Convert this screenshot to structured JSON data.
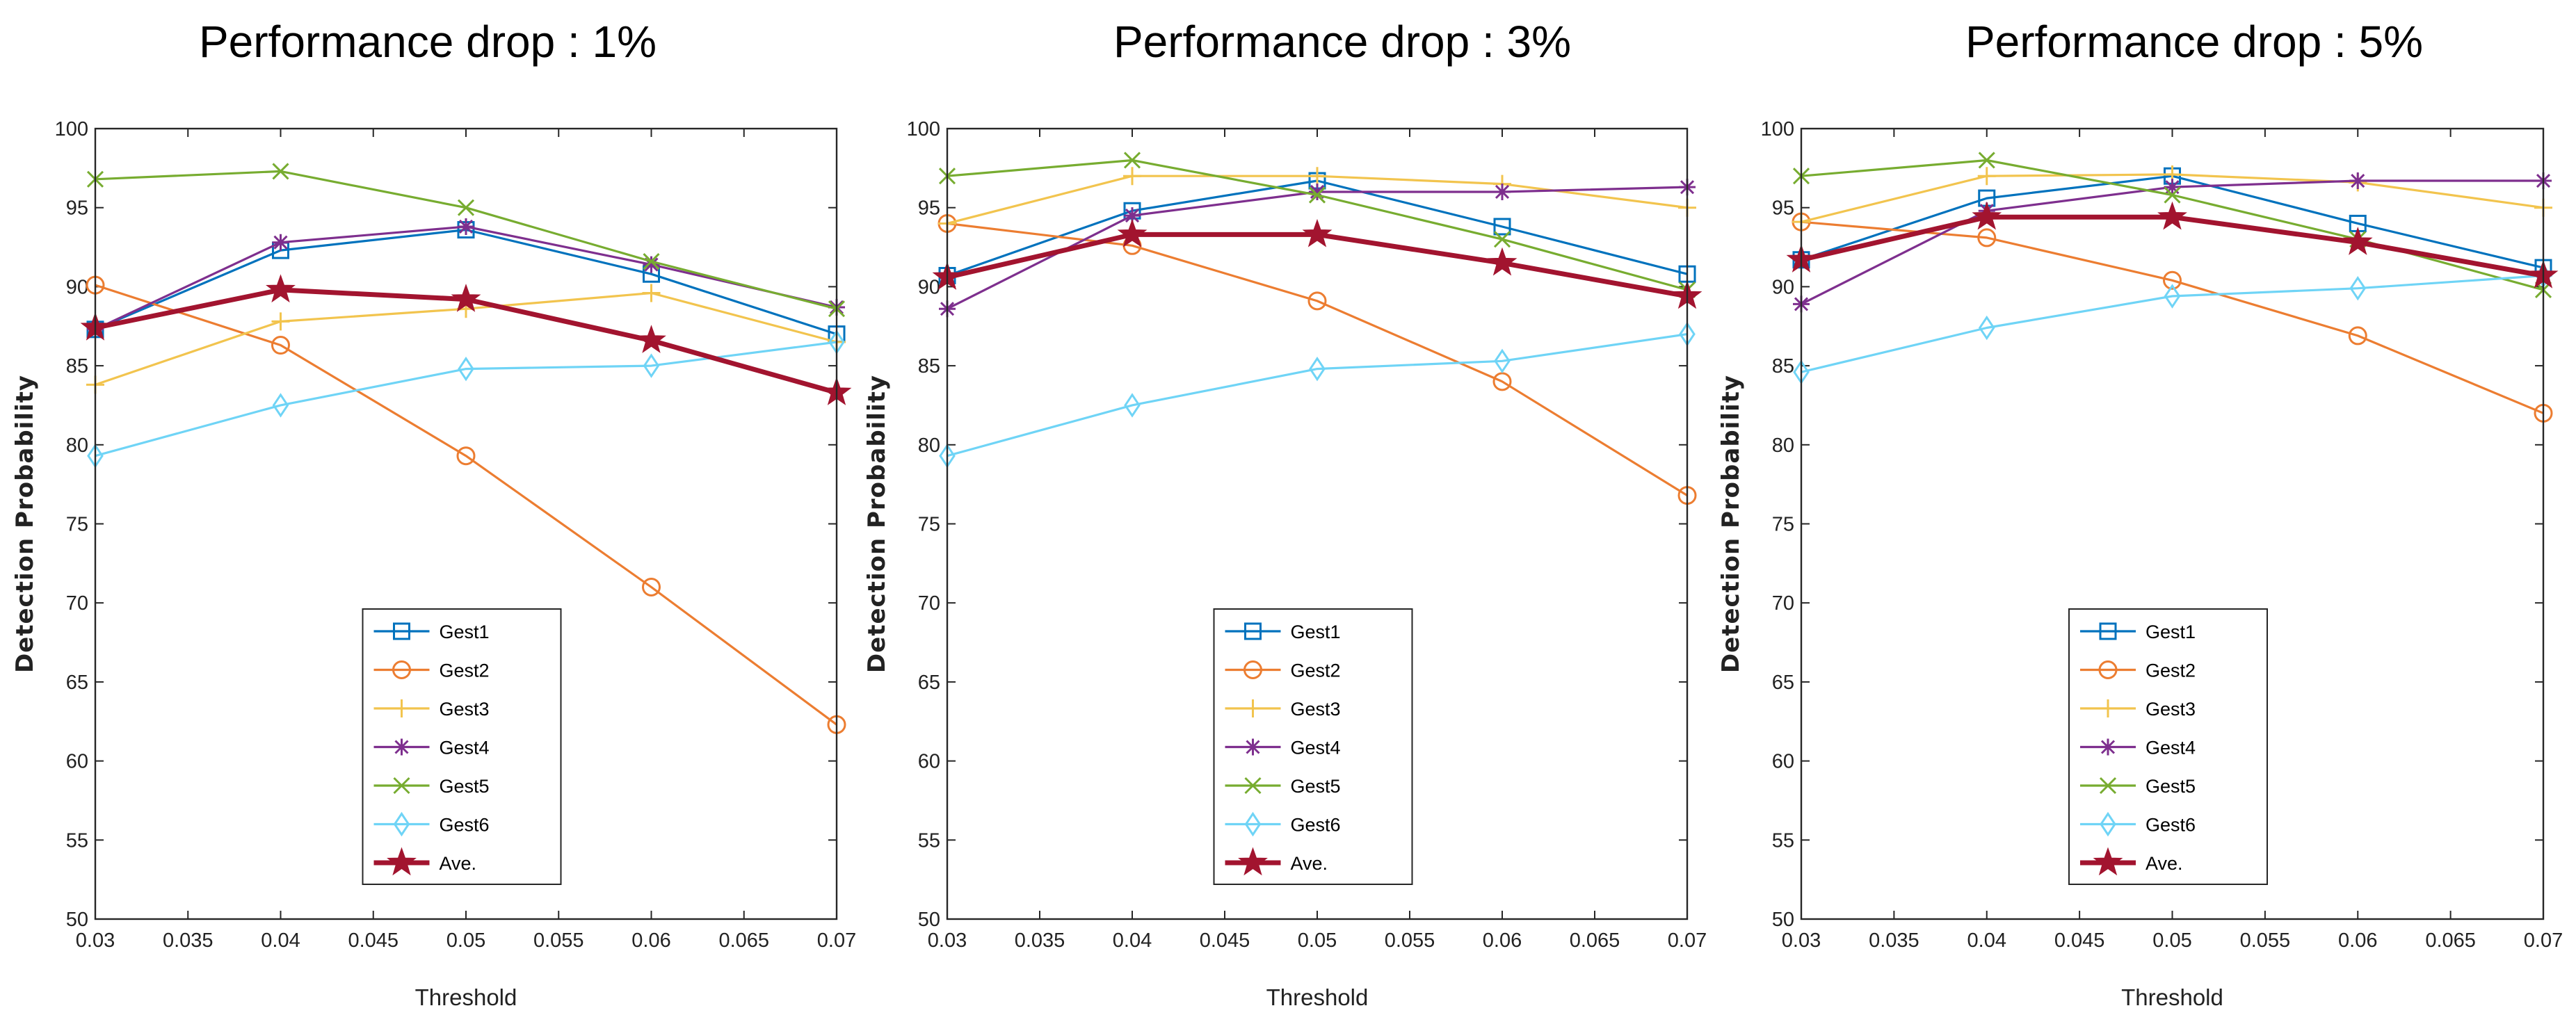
{
  "chart_data": [
    {
      "type": "line",
      "title": "Performance drop : 1%",
      "xlabel": "Threshold",
      "ylabel": "Detection Probability",
      "xlim": [
        0.03,
        0.07
      ],
      "ylim": [
        50,
        100
      ],
      "x": [
        0.03,
        0.04,
        0.05,
        0.06,
        0.07
      ],
      "xtick_labels": [
        "0.03",
        "0.035",
        "0.04",
        "0.045",
        "0.05",
        "0.055",
        "0.06",
        "0.065",
        "0.07"
      ],
      "ytick_labels": [
        "50",
        "55",
        "60",
        "65",
        "70",
        "75",
        "80",
        "85",
        "90",
        "95",
        "100"
      ],
      "legend_position": "bottom-center",
      "series": [
        {
          "name": "Gest1",
          "values": [
            87.3,
            92.3,
            93.6,
            90.8,
            87.0
          ]
        },
        {
          "name": "Gest2",
          "values": [
            90.1,
            86.3,
            79.3,
            71.0,
            62.3
          ]
        },
        {
          "name": "Gest3",
          "values": [
            83.8,
            87.8,
            88.6,
            89.6,
            86.5
          ]
        },
        {
          "name": "Gest4",
          "values": [
            87.3,
            92.8,
            93.8,
            91.4,
            88.7
          ]
        },
        {
          "name": "Gest5",
          "values": [
            96.8,
            97.3,
            95.0,
            91.6,
            88.6
          ]
        },
        {
          "name": "Gest6",
          "values": [
            79.3,
            82.5,
            84.8,
            85.0,
            86.5
          ]
        },
        {
          "name": "Ave.",
          "values": [
            87.4,
            89.8,
            89.2,
            86.6,
            83.3
          ]
        }
      ]
    },
    {
      "type": "line",
      "title": "Performance drop : 3%",
      "xlabel": "Threshold",
      "ylabel": "Detection Probability",
      "xlim": [
        0.03,
        0.07
      ],
      "ylim": [
        50,
        100
      ],
      "x": [
        0.03,
        0.04,
        0.05,
        0.06,
        0.07
      ],
      "xtick_labels": [
        "0.03",
        "0.035",
        "0.04",
        "0.045",
        "0.05",
        "0.055",
        "0.06",
        "0.065",
        "0.07"
      ],
      "ytick_labels": [
        "50",
        "55",
        "60",
        "65",
        "70",
        "75",
        "80",
        "85",
        "90",
        "95",
        "100"
      ],
      "legend_position": "bottom-center",
      "series": [
        {
          "name": "Gest1",
          "values": [
            90.7,
            94.8,
            96.7,
            93.8,
            90.8
          ]
        },
        {
          "name": "Gest2",
          "values": [
            94.0,
            92.6,
            89.1,
            84.0,
            76.8
          ]
        },
        {
          "name": "Gest3",
          "values": [
            94.0,
            97.0,
            97.0,
            96.5,
            95.0
          ]
        },
        {
          "name": "Gest4",
          "values": [
            88.6,
            94.5,
            96.0,
            96.0,
            96.3
          ]
        },
        {
          "name": "Gest5",
          "values": [
            97.0,
            98.0,
            95.8,
            93.0,
            89.8
          ]
        },
        {
          "name": "Gest6",
          "values": [
            79.3,
            82.5,
            84.8,
            85.3,
            87.0
          ]
        },
        {
          "name": "Ave.",
          "values": [
            90.6,
            93.3,
            93.3,
            91.5,
            89.4
          ]
        }
      ]
    },
    {
      "type": "line",
      "title": "Performance drop : 5%",
      "xlabel": "Threshold",
      "ylabel": "Detection Probability",
      "xlim": [
        0.03,
        0.07
      ],
      "ylim": [
        50,
        100
      ],
      "x": [
        0.03,
        0.04,
        0.05,
        0.06,
        0.07
      ],
      "xtick_labels": [
        "0.03",
        "0.035",
        "0.04",
        "0.045",
        "0.05",
        "0.055",
        "0.06",
        "0.065",
        "0.07"
      ],
      "ytick_labels": [
        "50",
        "55",
        "60",
        "65",
        "70",
        "75",
        "80",
        "85",
        "90",
        "95",
        "100"
      ],
      "legend_position": "bottom-center",
      "series": [
        {
          "name": "Gest1",
          "values": [
            91.7,
            95.6,
            97.0,
            94.0,
            91.2
          ]
        },
        {
          "name": "Gest2",
          "values": [
            94.1,
            93.1,
            90.4,
            86.9,
            82.0
          ]
        },
        {
          "name": "Gest3",
          "values": [
            94.1,
            97.0,
            97.1,
            96.6,
            95.0
          ]
        },
        {
          "name": "Gest4",
          "values": [
            88.9,
            94.8,
            96.3,
            96.7,
            96.7
          ]
        },
        {
          "name": "Gest5",
          "values": [
            97.0,
            98.0,
            95.8,
            93.0,
            89.8
          ]
        },
        {
          "name": "Gest6",
          "values": [
            84.6,
            87.4,
            89.4,
            89.9,
            90.7
          ]
        },
        {
          "name": "Ave.",
          "values": [
            91.7,
            94.4,
            94.4,
            92.8,
            90.7
          ]
        }
      ]
    }
  ],
  "colors": {
    "Gest1": "#0072bd",
    "Gest2": "#ec7d31",
    "Gest3": "#f2c44e",
    "Gest4": "#7e2f8e",
    "Gest5": "#77ac30",
    "Gest6": "#6fd4f6",
    "Ave.": "#a2142f"
  },
  "markers": {
    "Gest1": "square",
    "Gest2": "circle",
    "Gest3": "plus",
    "Gest4": "asterisk",
    "Gest5": "x",
    "Gest6": "diamond",
    "Ave.": "star"
  }
}
